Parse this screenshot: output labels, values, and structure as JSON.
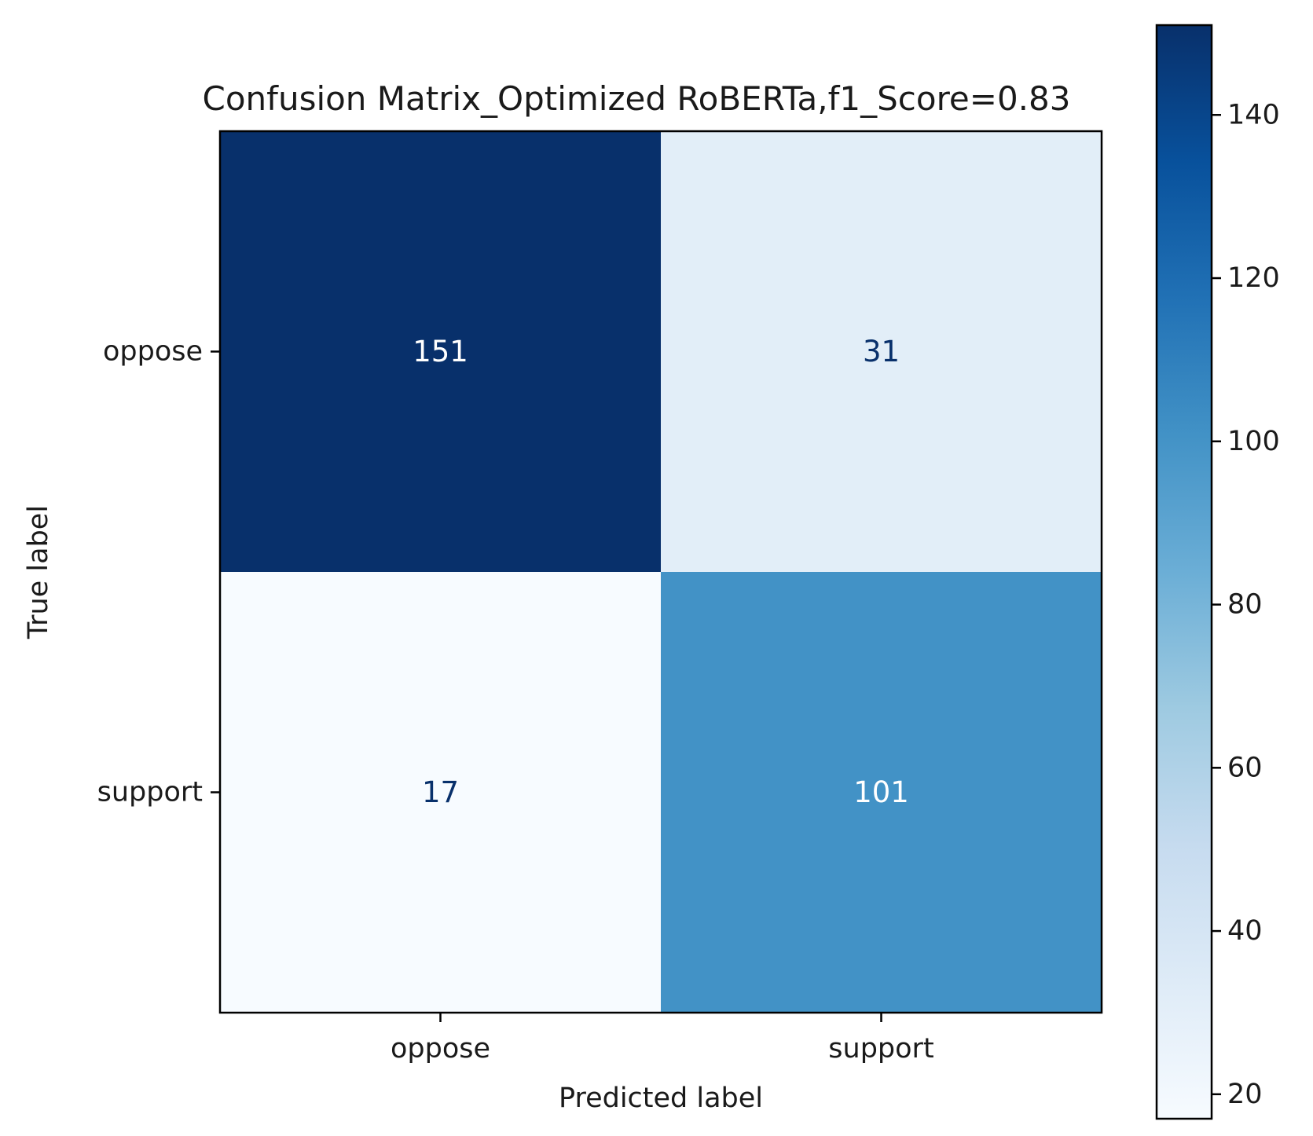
{
  "chart_data": {
    "type": "heatmap",
    "title": "Confusion Matrix_Optimized RoBERTa,f1_Score=0.83",
    "xlabel": "Predicted label",
    "ylabel": "True label",
    "x_categories": [
      "oppose",
      "support"
    ],
    "y_categories": [
      "oppose",
      "support"
    ],
    "matrix": [
      [
        151,
        31
      ],
      [
        17,
        101
      ]
    ],
    "colormap": "Blues",
    "colorbar": {
      "min": 17,
      "max": 151,
      "ticks": [
        20,
        40,
        60,
        80,
        100,
        120,
        140
      ]
    },
    "text_colors": {
      "on_dark": "#ffffff",
      "on_light": "#08306b"
    }
  }
}
